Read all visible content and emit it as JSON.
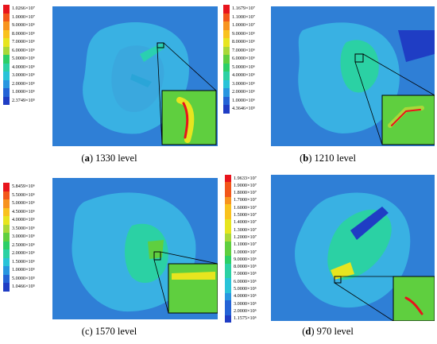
{
  "panels": [
    {
      "id": "a",
      "caption_label": "a",
      "caption_text": " 1330 level",
      "caption_bold_paren": true,
      "legend": [
        "1.0266×10⁷",
        "1.0000×10⁷",
        "9.0000×10⁶",
        "8.0000×10⁶",
        "7.0000×10⁶",
        "6.0000×10⁶",
        "5.0000×10⁶",
        "4.0000×10⁶",
        "3.0000×10⁶",
        "2.0000×10⁶",
        "1.0000×10⁶",
        "2.3749×10⁵"
      ]
    },
    {
      "id": "b",
      "caption_label": "b",
      "caption_text": " 1210 level",
      "caption_bold_paren": true,
      "legend": [
        "1.1679×10⁷",
        "1.1000×10⁷",
        "1.0000×10⁷",
        "9.0000×10⁶",
        "8.0000×10⁶",
        "7.0000×10⁶",
        "6.0000×10⁶",
        "5.0000×10⁶",
        "4.0000×10⁶",
        "3.0000×10⁶",
        "2.0000×10⁶",
        "1.0000×10⁶",
        "4.3646×10⁵"
      ]
    },
    {
      "id": "c",
      "caption_label": "c",
      "caption_text": " 1570 level",
      "caption_bold_paren": false,
      "legend": [
        "5.8459×10⁶",
        "5.5000×10⁶",
        "5.0000×10⁶",
        "4.5000×10⁶",
        "4.0000×10⁶",
        "3.5000×10⁶",
        "3.0000×10⁶",
        "2.5000×10⁶",
        "2.0000×10⁶",
        "1.5000×10⁶",
        "1.0000×10⁶",
        "5.0000×10⁵",
        "1.0466×10⁵"
      ]
    },
    {
      "id": "d",
      "caption_label": "d",
      "caption_text": " 970 level",
      "caption_bold_paren": true,
      "legend": [
        "1.9633×10⁷",
        "1.9000×10⁷",
        "1.8000×10⁷",
        "1.7000×10⁷",
        "1.6000×10⁷",
        "1.5000×10⁷",
        "1.4000×10⁷",
        "1.3000×10⁷",
        "1.2000×10⁷",
        "1.1000×10⁷",
        "1.0000×10⁷",
        "9.0000×10⁶",
        "8.0000×10⁶",
        "7.0000×10⁶",
        "6.0000×10⁶",
        "5.0000×10⁶",
        "4.0000×10⁶",
        "3.0000×10⁶",
        "2.0000×10⁶",
        "1.1575×10⁶"
      ]
    }
  ],
  "colors": {
    "scale": [
      "#e8141c",
      "#f2561a",
      "#f7931e",
      "#f9c21d",
      "#e7e51f",
      "#a9d838",
      "#5fcf3f",
      "#2ccf67",
      "#2bd1a4",
      "#29c3d8",
      "#2896e0",
      "#2463d6",
      "#1f3dc4"
    ],
    "background_field": "#2f7fd6",
    "light_field": "#39b1e3"
  }
}
